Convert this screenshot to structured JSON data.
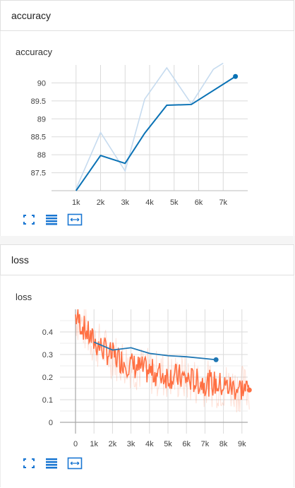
{
  "sections": {
    "accuracy": {
      "header": "accuracy",
      "card_title": "accuracy"
    },
    "loss": {
      "header": "loss",
      "card_title": "loss"
    }
  },
  "toolbar": {
    "icons": [
      "expand-icon",
      "data-table-icon",
      "fit-domain-icon"
    ],
    "icon_color": "#1976d2"
  },
  "chart_data": [
    {
      "type": "line",
      "title": "accuracy",
      "x_ticks": [
        "1k",
        "2k",
        "3k",
        "4k",
        "5k",
        "6k",
        "7k"
      ],
      "y_ticks": [
        "87.5",
        "88",
        "88.5",
        "89",
        "89.5",
        "90"
      ],
      "xlim": [
        0,
        8000
      ],
      "ylim": [
        87.0,
        90.5
      ],
      "grid": true,
      "series": [
        {
          "role": "raw",
          "color": "#c6dbef",
          "x": [
            1000,
            2000,
            3000,
            3800,
            4700,
            5700,
            6600,
            7000
          ],
          "y": [
            87.05,
            88.62,
            87.55,
            89.55,
            90.42,
            89.42,
            90.38,
            90.55
          ]
        },
        {
          "role": "smoothed",
          "color": "#0a72b5",
          "x": [
            1000,
            2000,
            3000,
            3800,
            4700,
            5700,
            7500
          ],
          "y": [
            87.0,
            87.98,
            87.76,
            88.6,
            89.38,
            89.4,
            90.18
          ]
        }
      ]
    },
    {
      "type": "line",
      "title": "loss",
      "x_ticks": [
        "0",
        "1k",
        "2k",
        "3k",
        "4k",
        "5k",
        "6k",
        "7k",
        "8k",
        "9k"
      ],
      "y_ticks": [
        "0",
        "0.1",
        "0.2",
        "0.3",
        "0.4"
      ],
      "xlim": [
        0,
        10000
      ],
      "ylim": [
        -0.05,
        0.5
      ],
      "grid": true,
      "series": [
        {
          "role": "eval",
          "color": "#1f77b4",
          "x": [
            1000,
            2000,
            3000,
            4000,
            5000,
            6000,
            7000,
            7600
          ],
          "y": [
            0.355,
            0.32,
            0.33,
            0.305,
            0.295,
            0.29,
            0.282,
            0.277
          ]
        },
        {
          "role": "train",
          "color": "#ff7043",
          "x_start": 0,
          "x_end": 9400,
          "points": 220,
          "trend": [
            0.47,
            0.36,
            0.3,
            0.26,
            0.23,
            0.21,
            0.2,
            0.18,
            0.17,
            0.155,
            0.145
          ],
          "spread": 0.06
        }
      ]
    }
  ]
}
